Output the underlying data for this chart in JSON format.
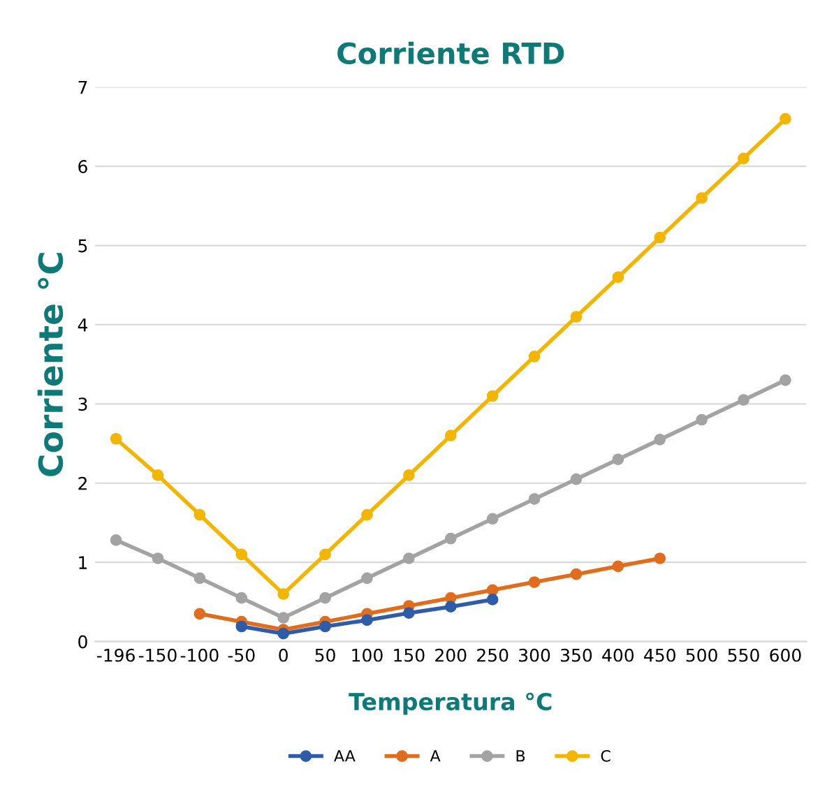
{
  "chart_data": {
    "type": "line",
    "title": "Corriente RTD",
    "xlabel": "Temperatura °C",
    "ylabel": "Corriente °C",
    "categories": [
      "-196",
      "-150",
      "-100",
      "-50",
      "0",
      "50",
      "100",
      "150",
      "200",
      "250",
      "300",
      "350",
      "400",
      "450",
      "500",
      "550",
      "600"
    ],
    "series": [
      {
        "name": "AA",
        "color": "#2f5ca8",
        "values": [
          null,
          null,
          null,
          0.19,
          0.1,
          0.19,
          0.27,
          0.36,
          0.44,
          0.53,
          null,
          null,
          null,
          null,
          null,
          null,
          null
        ]
      },
      {
        "name": "A",
        "color": "#e06c1e",
        "values": [
          null,
          null,
          0.35,
          0.25,
          0.15,
          0.25,
          0.35,
          0.45,
          0.55,
          0.65,
          0.75,
          0.85,
          0.95,
          1.05,
          null,
          null,
          null
        ]
      },
      {
        "name": "B",
        "color": "#a3a3a3",
        "values": [
          1.28,
          1.05,
          0.8,
          0.55,
          0.3,
          0.55,
          0.8,
          1.05,
          1.3,
          1.55,
          1.8,
          2.05,
          2.3,
          2.55,
          2.8,
          3.05,
          3.3
        ]
      },
      {
        "name": "C",
        "color": "#f2b600",
        "values": [
          2.56,
          2.1,
          1.6,
          1.1,
          0.6,
          1.1,
          1.6,
          2.1,
          2.6,
          3.1,
          3.6,
          4.1,
          4.6,
          5.1,
          5.6,
          6.1,
          6.6
        ]
      }
    ],
    "ylim": [
      0,
      7
    ],
    "yticks": [
      0,
      1,
      2,
      3,
      4,
      5,
      6,
      7
    ],
    "grid": "y",
    "legend": "bottom",
    "marker": "circle",
    "line_style": "solid"
  }
}
